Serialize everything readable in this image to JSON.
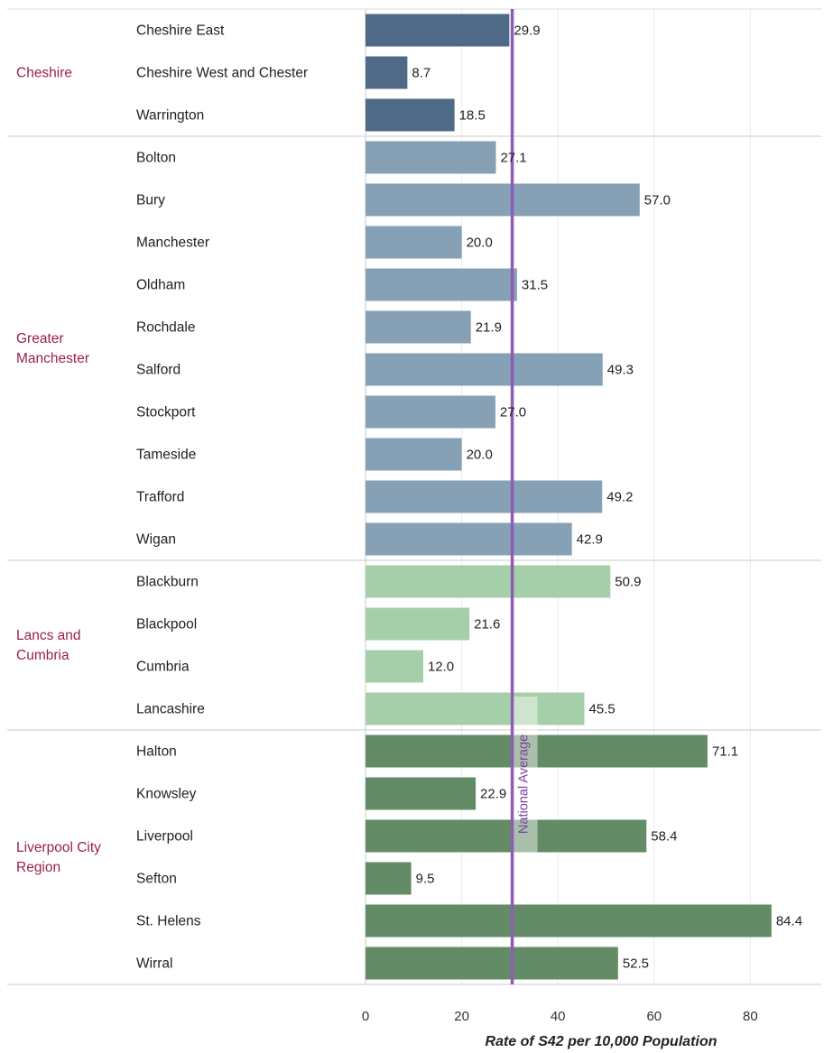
{
  "chart_data": {
    "type": "bar",
    "orientation": "horizontal",
    "xlabel": "Rate of S42 per 10,000 Population",
    "xlim": [
      0,
      93
    ],
    "xticks": [
      0,
      20,
      40,
      60,
      80
    ],
    "grid": true,
    "reference_line": {
      "label": "National Average",
      "value": 30.5,
      "color": "#8e5bb5"
    },
    "groups": [
      {
        "name": "Cheshire",
        "color": "#4e6a87",
        "items": [
          {
            "area": "Cheshire East",
            "value": 29.9
          },
          {
            "area": "Cheshire West and Chester",
            "value": 8.7
          },
          {
            "area": "Warrington",
            "value": 18.5
          }
        ]
      },
      {
        "name": "Greater Manchester",
        "color": "#86a0b5",
        "items": [
          {
            "area": "Bolton",
            "value": 27.1
          },
          {
            "area": "Bury",
            "value": 57.0
          },
          {
            "area": "Manchester",
            "value": 20.0
          },
          {
            "area": "Oldham",
            "value": 31.5
          },
          {
            "area": "Rochdale",
            "value": 21.9
          },
          {
            "area": "Salford",
            "value": 49.3
          },
          {
            "area": "Stockport",
            "value": 27.0
          },
          {
            "area": "Tameside",
            "value": 20.0
          },
          {
            "area": "Trafford",
            "value": 49.2
          },
          {
            "area": "Wigan",
            "value": 42.9
          }
        ]
      },
      {
        "name": "Lancs and Cumbria",
        "color": "#a4cfa8",
        "items": [
          {
            "area": "Blackburn",
            "value": 50.9
          },
          {
            "area": "Blackpool",
            "value": 21.6
          },
          {
            "area": "Cumbria",
            "value": 12.0
          },
          {
            "area": "Lancashire",
            "value": 45.5
          }
        ]
      },
      {
        "name": "Liverpool City Region",
        "color": "#638b65",
        "items": [
          {
            "area": "Halton",
            "value": 71.1
          },
          {
            "area": "Knowsley",
            "value": 22.9
          },
          {
            "area": "Liverpool",
            "value": 58.4
          },
          {
            "area": "Sefton",
            "value": 9.5
          },
          {
            "area": "St. Helens",
            "value": 84.4
          },
          {
            "area": "Wirral",
            "value": 52.5
          }
        ]
      }
    ]
  }
}
